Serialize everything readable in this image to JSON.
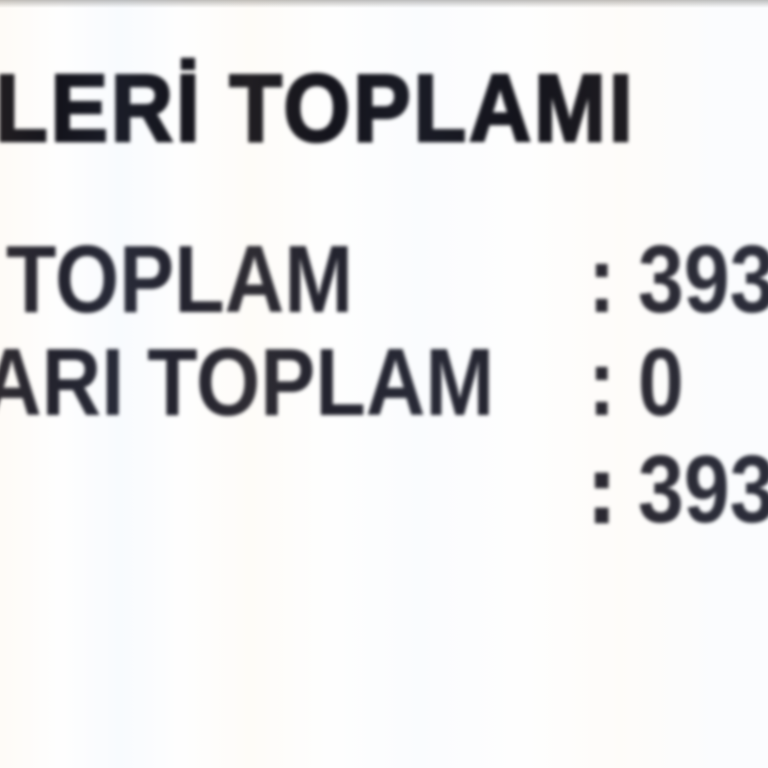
{
  "document": {
    "title": "LERİ TOPLAMI",
    "rows": [
      {
        "label": "TOPLAM",
        "separator": ":",
        "value": "393"
      },
      {
        "label": "ARI TOPLAM",
        "separator": ":",
        "value": "0"
      },
      {
        "label": "",
        "separator": ":",
        "value": "393"
      }
    ]
  },
  "colors": {
    "title": "#14141c",
    "body_text": "#23232e",
    "top_fade": "#bdbcba",
    "background": "#fefefe"
  }
}
